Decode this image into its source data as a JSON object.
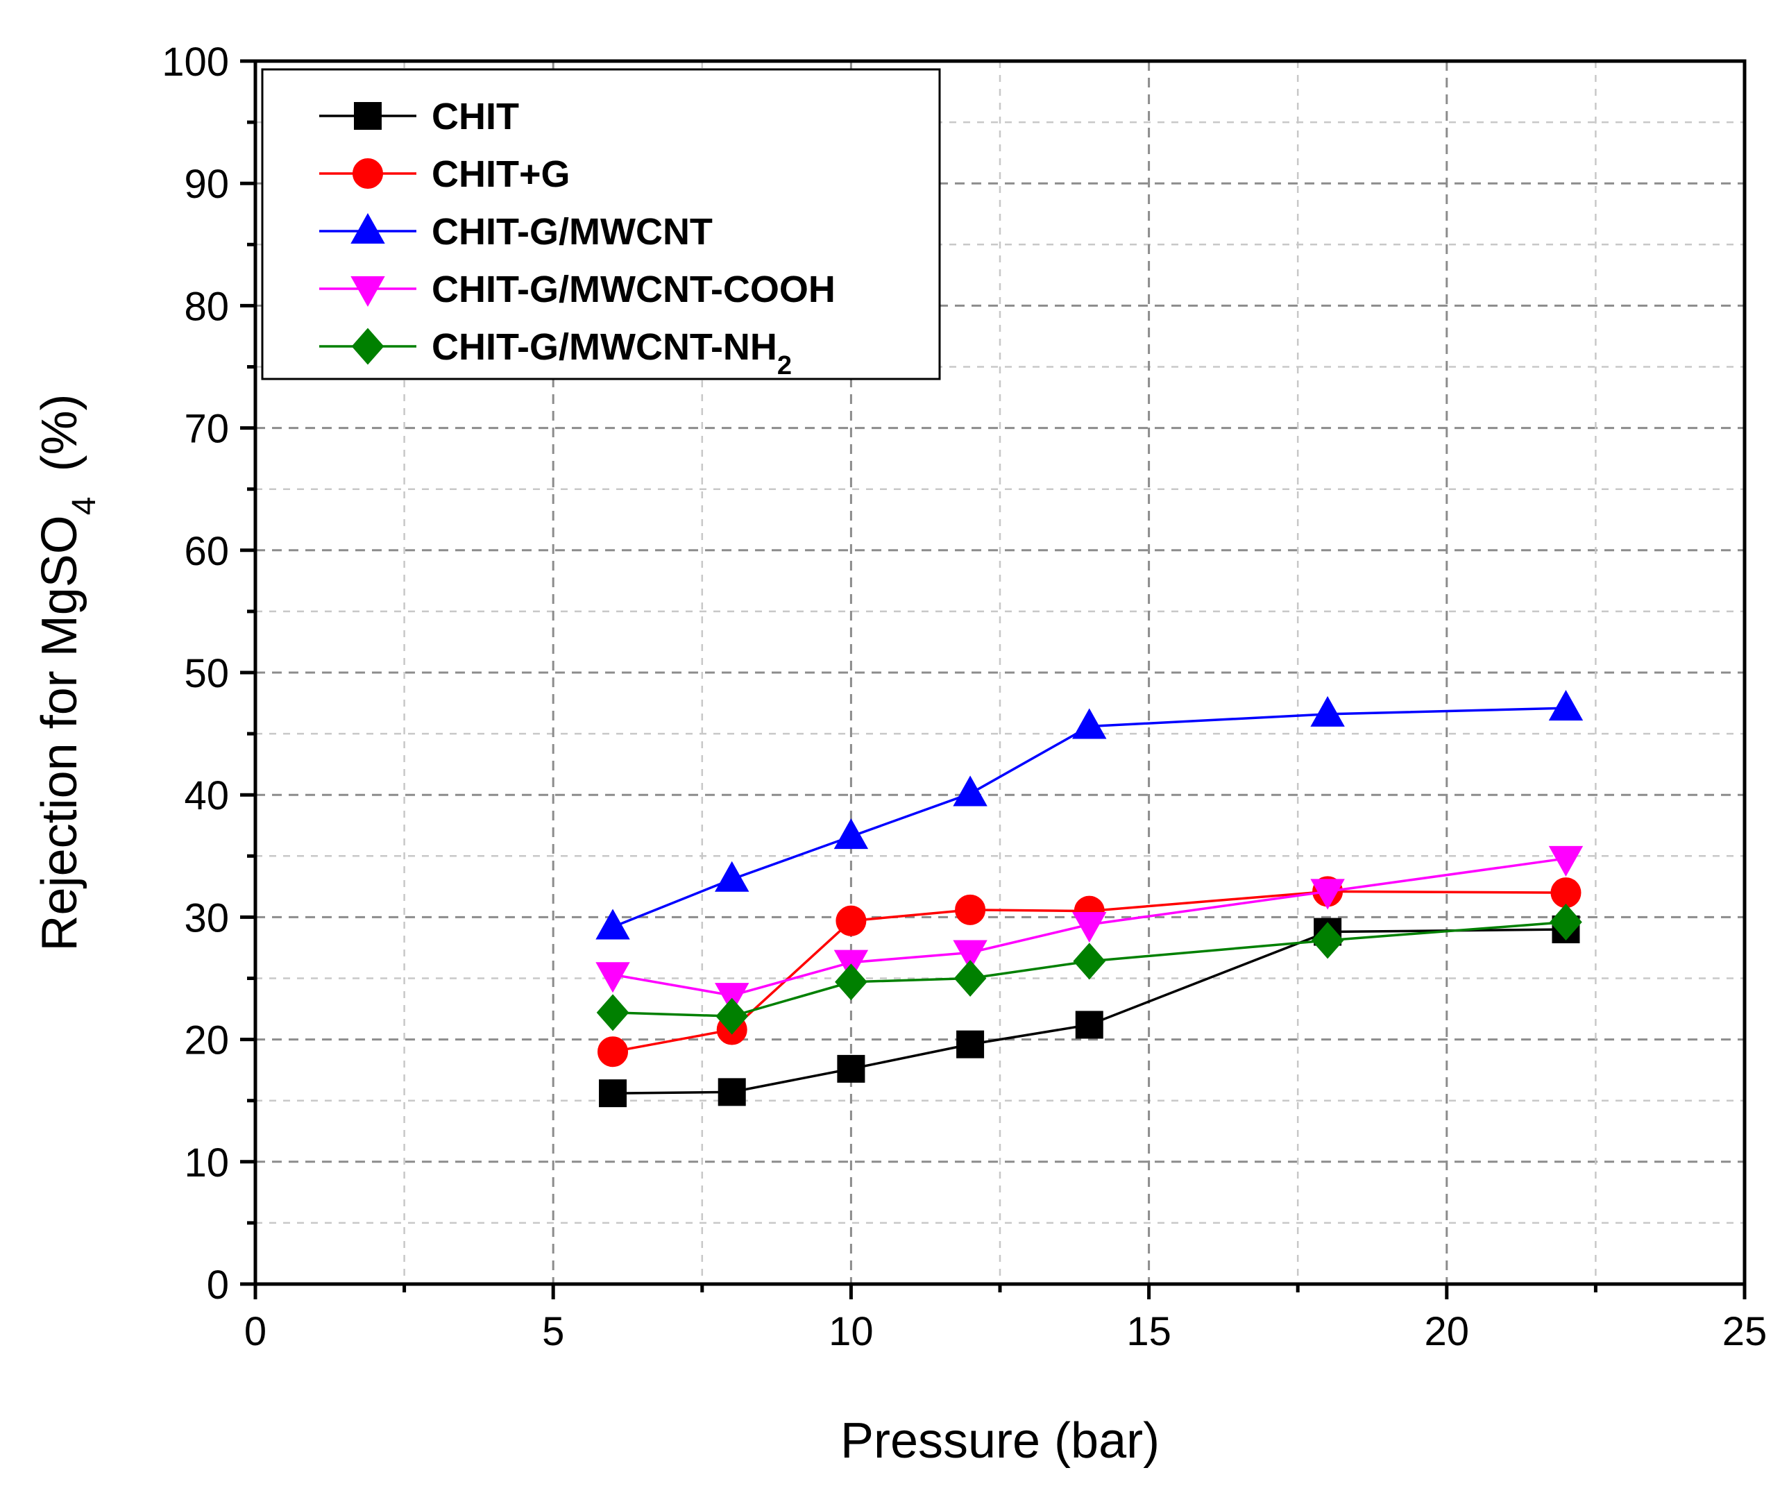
{
  "chart_data": {
    "type": "line",
    "xlabel": "Pressure (bar)",
    "ylabel": {
      "prefix": "Rejection for MgSO",
      "subscript": "4",
      "suffix": "(%)"
    },
    "xlim": [
      0,
      25
    ],
    "ylim": [
      0,
      100
    ],
    "x_ticks": [
      "0",
      "5",
      "10",
      "15",
      "20",
      "25"
    ],
    "y_ticks": [
      "0",
      "10",
      "20",
      "30",
      "40",
      "50",
      "60",
      "70",
      "80",
      "90",
      "100"
    ],
    "grid": true,
    "legend_position": "top-left",
    "x": [
      6,
      8,
      10,
      12,
      14,
      18,
      22
    ],
    "series": [
      {
        "name": "CHIT",
        "label": "CHIT",
        "sub": "",
        "color": "#000000",
        "marker": "square",
        "values": [
          15.6,
          15.7,
          17.6,
          19.6,
          21.2,
          28.8,
          29.0
        ]
      },
      {
        "name": "CHIT+G",
        "label": "CHIT+G",
        "sub": "",
        "color": "#ff0000",
        "marker": "circle",
        "values": [
          19.0,
          20.8,
          29.7,
          30.6,
          30.5,
          32.1,
          32.0
        ]
      },
      {
        "name": "CHIT-G/MWCNT",
        "label": "CHIT-G/MWCNT",
        "sub": "",
        "color": "#0000ff",
        "marker": "triangle-up",
        "values": [
          29.2,
          33.1,
          36.6,
          40.1,
          45.6,
          46.6,
          47.1
        ]
      },
      {
        "name": "CHIT-G/MWCNT-COOH",
        "label": "CHIT-G/MWCNT-COOH",
        "sub": "",
        "color": "#ff00ff",
        "marker": "triangle-down",
        "values": [
          25.3,
          23.6,
          26.3,
          27.1,
          29.4,
          32.1,
          34.8
        ]
      },
      {
        "name": "CHIT-G/MWCNT-NH2",
        "label": "CHIT-G/MWCNT-NH",
        "sub": "2",
        "color": "#008000",
        "marker": "diamond",
        "values": [
          22.2,
          21.9,
          24.7,
          25.0,
          26.4,
          28.1,
          29.6
        ]
      }
    ]
  }
}
